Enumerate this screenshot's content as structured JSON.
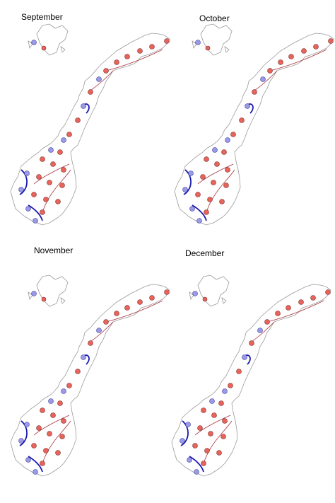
{
  "panels": [
    {
      "title": "September"
    },
    {
      "title": "October"
    },
    {
      "title": "November"
    },
    {
      "title": "December"
    }
  ]
}
